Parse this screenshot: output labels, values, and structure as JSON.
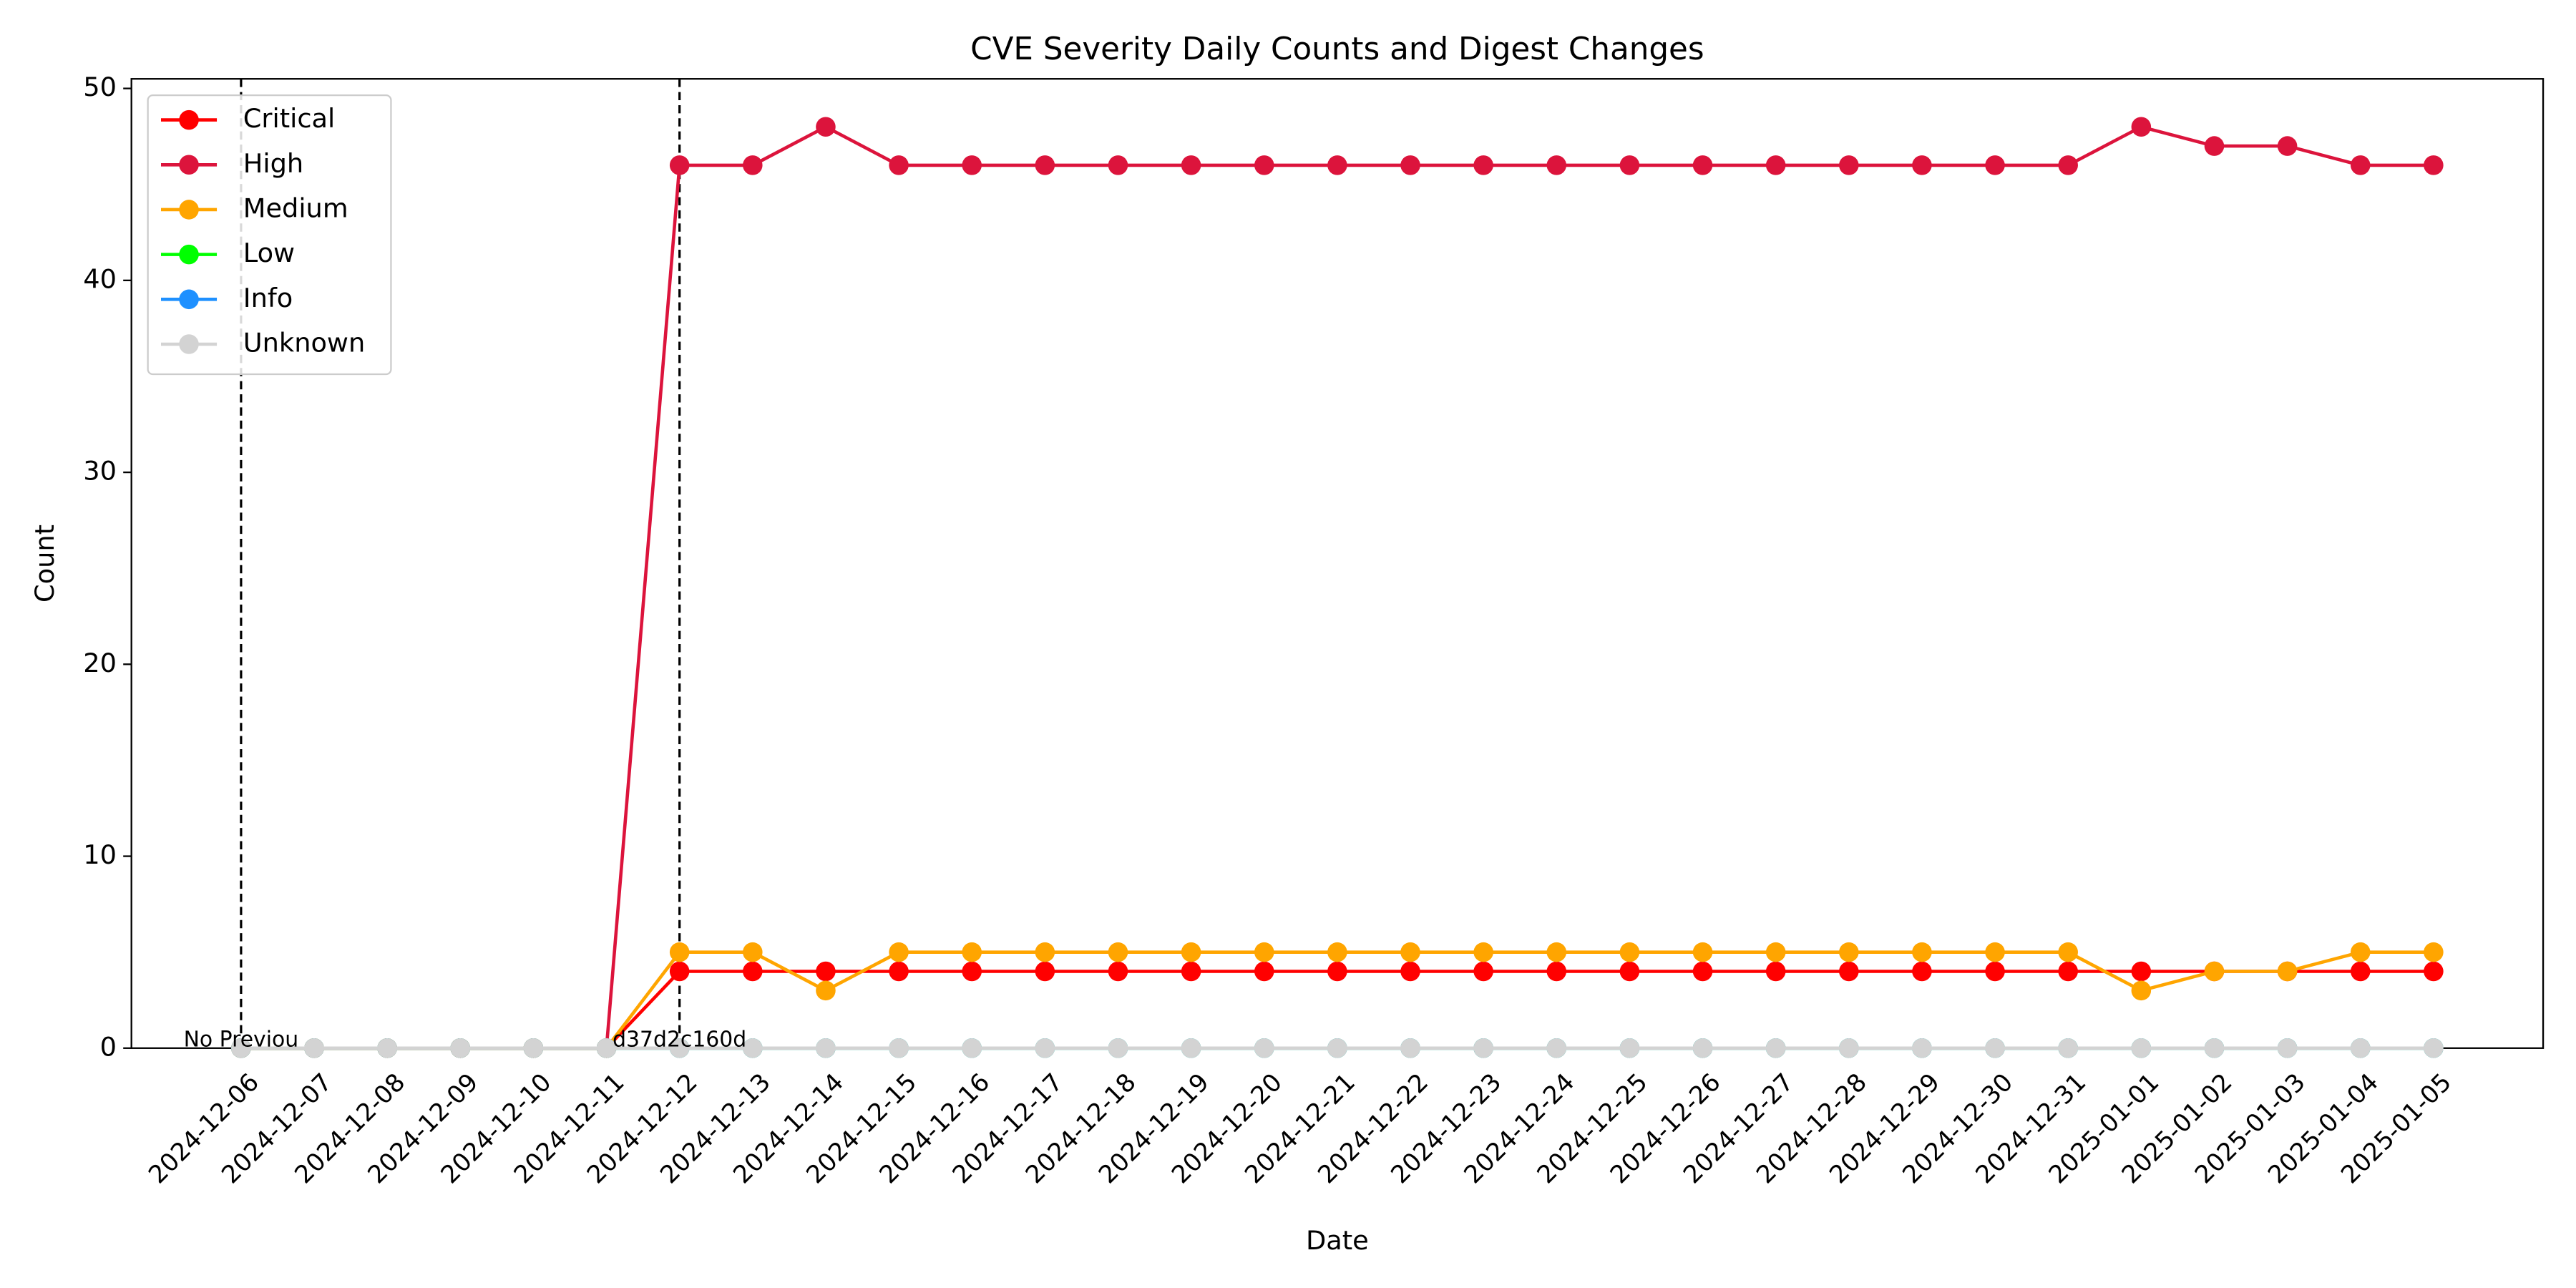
{
  "chart_data": {
    "type": "line",
    "title": "CVE Severity Daily Counts and Digest Changes",
    "x_label": "Date",
    "y_label": "Count",
    "categories": [
      "2024-12-06",
      "2024-12-07",
      "2024-12-08",
      "2024-12-09",
      "2024-12-10",
      "2024-12-11",
      "2024-12-12",
      "2024-12-13",
      "2024-12-14",
      "2024-12-15",
      "2024-12-16",
      "2024-12-17",
      "2024-12-18",
      "2024-12-19",
      "2024-12-20",
      "2024-12-21",
      "2024-12-22",
      "2024-12-23",
      "2024-12-24",
      "2024-12-25",
      "2024-12-26",
      "2024-12-27",
      "2024-12-28",
      "2024-12-29",
      "2024-12-30",
      "2024-12-31",
      "2025-01-01",
      "2025-01-02",
      "2025-01-03",
      "2025-01-04",
      "2025-01-05"
    ],
    "series": [
      {
        "name": "Critical",
        "color": "#ff0000",
        "values": [
          0,
          0,
          0,
          0,
          0,
          0,
          4,
          4,
          4,
          4,
          4,
          4,
          4,
          4,
          4,
          4,
          4,
          4,
          4,
          4,
          4,
          4,
          4,
          4,
          4,
          4,
          4,
          4,
          4,
          4,
          4
        ]
      },
      {
        "name": "High",
        "color": "#dc143c",
        "values": [
          0,
          0,
          0,
          0,
          0,
          0,
          46,
          46,
          48,
          46,
          46,
          46,
          46,
          46,
          46,
          46,
          46,
          46,
          46,
          46,
          46,
          46,
          46,
          46,
          46,
          46,
          48,
          47,
          47,
          46,
          46
        ]
      },
      {
        "name": "Medium",
        "color": "#ffa500",
        "values": [
          0,
          0,
          0,
          0,
          0,
          0,
          5,
          5,
          3,
          5,
          5,
          5,
          5,
          5,
          5,
          5,
          5,
          5,
          5,
          5,
          5,
          5,
          5,
          5,
          5,
          5,
          3,
          4,
          4,
          5,
          5
        ]
      },
      {
        "name": "Low",
        "color": "#00ff00",
        "values": [
          0,
          0,
          0,
          0,
          0,
          0,
          0,
          0,
          0,
          0,
          0,
          0,
          0,
          0,
          0,
          0,
          0,
          0,
          0,
          0,
          0,
          0,
          0,
          0,
          0,
          0,
          0,
          0,
          0,
          0,
          0
        ]
      },
      {
        "name": "Info",
        "color": "#1e90ff",
        "values": [
          0,
          0,
          0,
          0,
          0,
          0,
          0,
          0,
          0,
          0,
          0,
          0,
          0,
          0,
          0,
          0,
          0,
          0,
          0,
          0,
          0,
          0,
          0,
          0,
          0,
          0,
          0,
          0,
          0,
          0,
          0
        ]
      },
      {
        "name": "Unknown",
        "color": "#d3d3d3",
        "values": [
          0,
          0,
          0,
          0,
          0,
          0,
          0,
          0,
          0,
          0,
          0,
          0,
          0,
          0,
          0,
          0,
          0,
          0,
          0,
          0,
          0,
          0,
          0,
          0,
          0,
          0,
          0,
          0,
          0,
          0,
          0
        ]
      }
    ],
    "annotations": [
      {
        "x": "2024-12-06",
        "label": "No Previou"
      },
      {
        "x": "2024-12-12",
        "label": "d37d2c160d"
      }
    ],
    "ylim": [
      0,
      50.5
    ],
    "yticks": [
      0,
      10,
      20,
      30,
      40,
      50
    ],
    "legend": "upper left",
    "grid": false
  }
}
